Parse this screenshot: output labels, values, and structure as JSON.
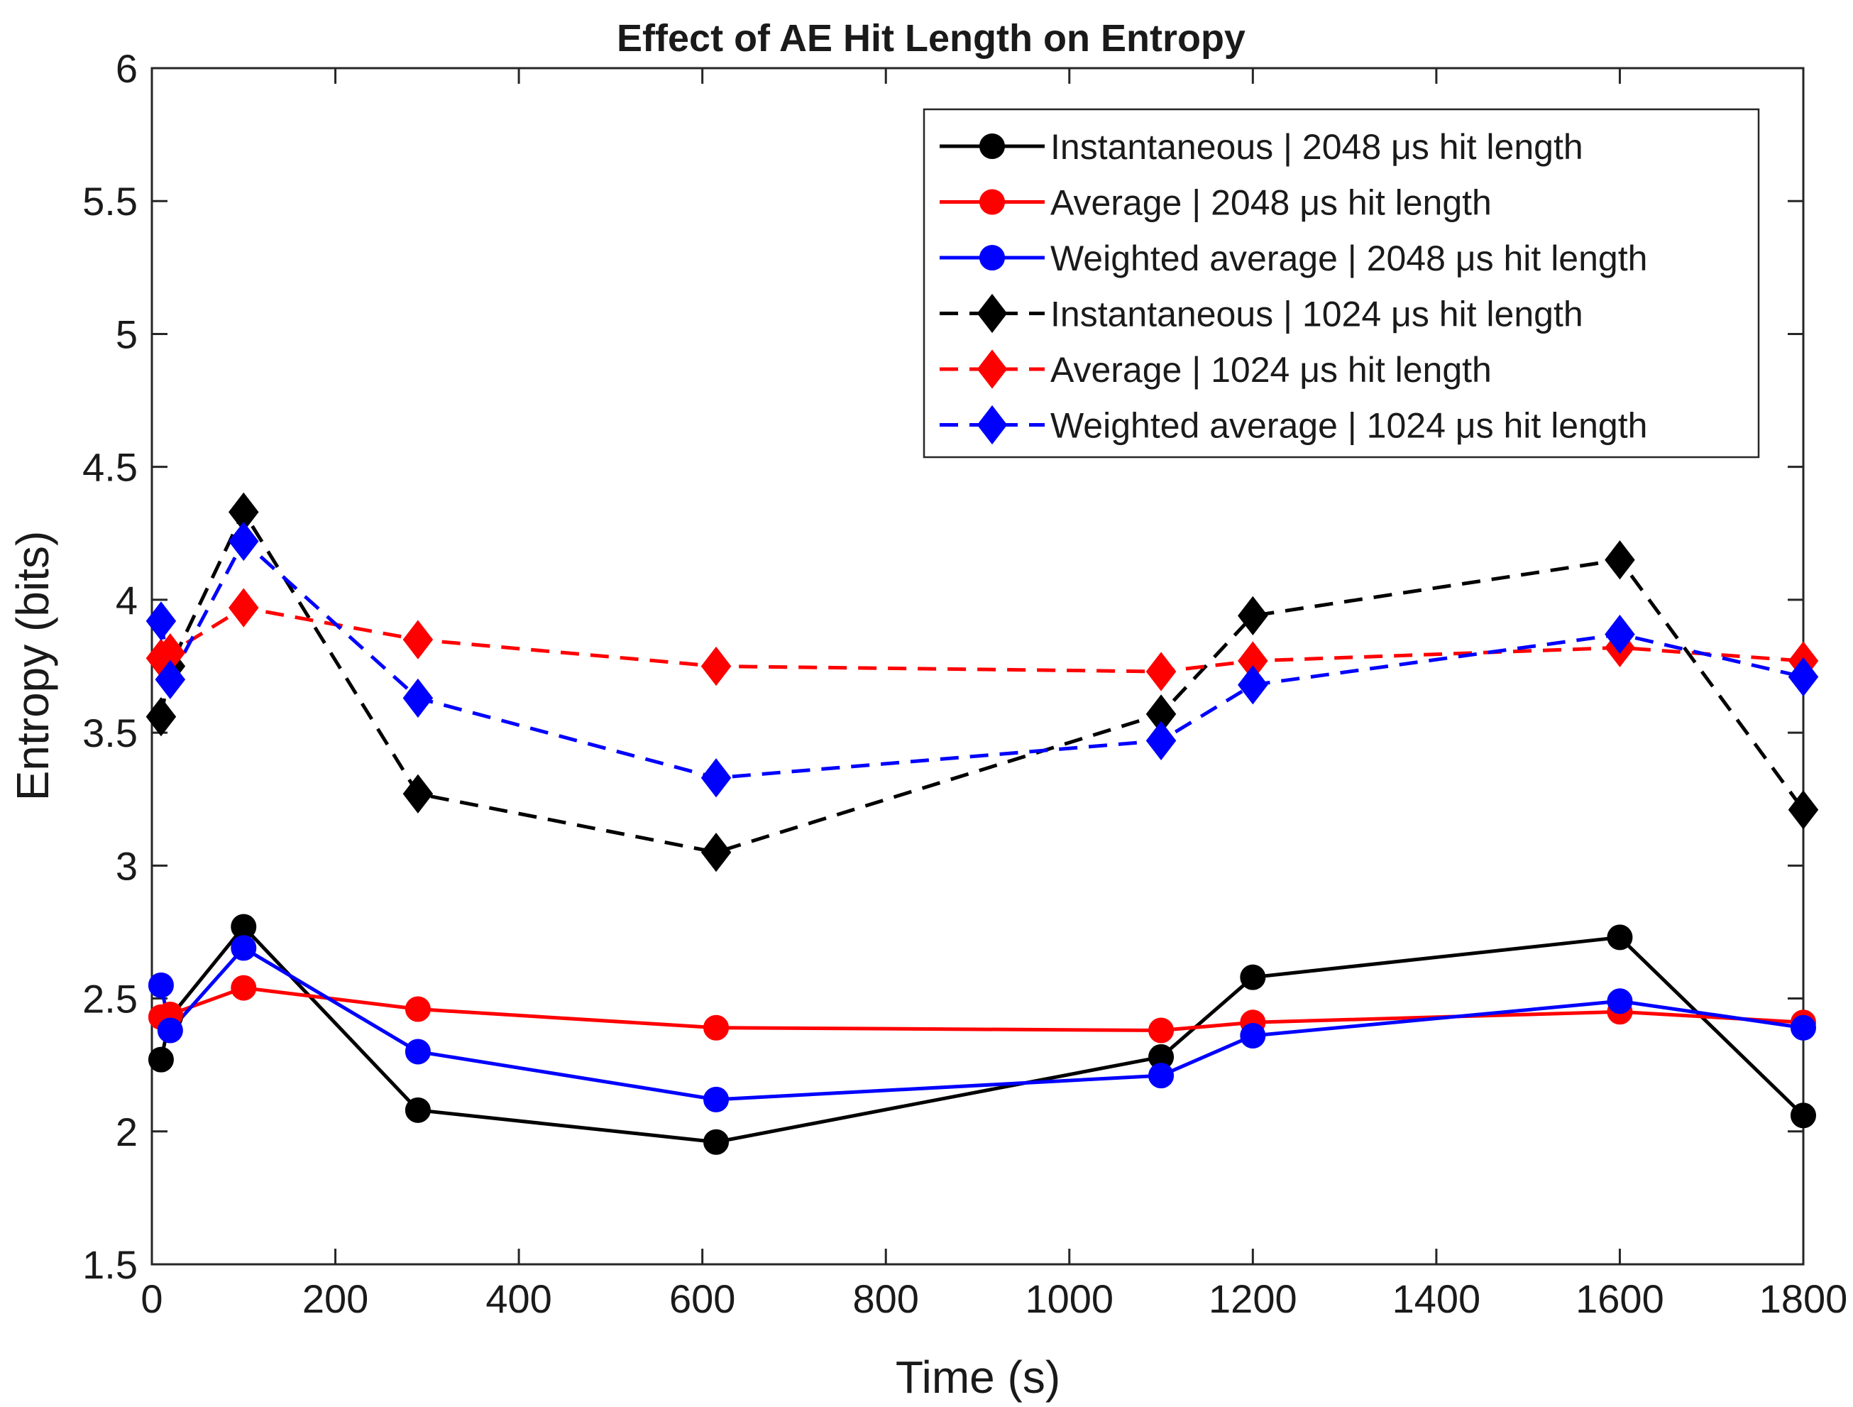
{
  "chart_data": {
    "type": "line",
    "title": "Effect of AE Hit Length on Entropy",
    "xlabel": "Time (s)",
    "ylabel": "Entropy (bits)",
    "xlim": [
      0,
      1800
    ],
    "ylim": [
      1.5,
      6
    ],
    "xticks": [
      0,
      200,
      400,
      600,
      800,
      1000,
      1200,
      1400,
      1600,
      1800
    ],
    "yticks": [
      1.5,
      2,
      2.5,
      3,
      3.5,
      4,
      4.5,
      5,
      5.5,
      6
    ],
    "xtick_labels": [
      "0",
      "200",
      "400",
      "600",
      "800",
      "1000",
      "1200",
      "1400",
      "1600",
      "1800"
    ],
    "ytick_labels": [
      "1.5",
      "2",
      "2.5",
      "3",
      "3.5",
      "4",
      "4.5",
      "5",
      "5.5",
      "6"
    ],
    "grid": false,
    "legend_position": "top-right",
    "x": [
      10,
      20,
      100,
      290,
      615,
      1100,
      1200,
      1600,
      1800
    ],
    "series": [
      {
        "name": "Instantaneous | 2048 μs hit length",
        "color": "#000000",
        "linestyle": "solid",
        "marker": "circle",
        "values": [
          2.27,
          2.43,
          2.77,
          2.08,
          1.96,
          2.28,
          2.58,
          2.73,
          2.06
        ]
      },
      {
        "name": "Average | 2048 μs hit length",
        "color": "#ff0000",
        "linestyle": "solid",
        "marker": "circle",
        "values": [
          2.43,
          2.44,
          2.54,
          2.46,
          2.39,
          2.38,
          2.41,
          2.45,
          2.41
        ]
      },
      {
        "name": "Weighted average | 2048 μs hit length",
        "color": "#0000ff",
        "linestyle": "solid",
        "marker": "circle",
        "values": [
          2.55,
          2.38,
          2.69,
          2.3,
          2.12,
          2.21,
          2.36,
          2.49,
          2.39
        ]
      },
      {
        "name": "Instantaneous | 1024 μs hit length",
        "color": "#000000",
        "linestyle": "dashed",
        "marker": "diamond",
        "values": [
          3.56,
          3.75,
          4.33,
          3.27,
          3.05,
          3.57,
          3.94,
          4.15,
          3.21
        ]
      },
      {
        "name": "Average | 1024 μs hit length",
        "color": "#ff0000",
        "linestyle": "dashed",
        "marker": "diamond",
        "values": [
          3.78,
          3.8,
          3.97,
          3.85,
          3.75,
          3.73,
          3.77,
          3.82,
          3.77
        ]
      },
      {
        "name": "Weighted average | 1024 μs hit length",
        "color": "#0000ff",
        "linestyle": "dashed",
        "marker": "diamond",
        "values": [
          3.92,
          3.7,
          4.22,
          3.63,
          3.33,
          3.47,
          3.68,
          3.87,
          3.71
        ]
      }
    ]
  }
}
